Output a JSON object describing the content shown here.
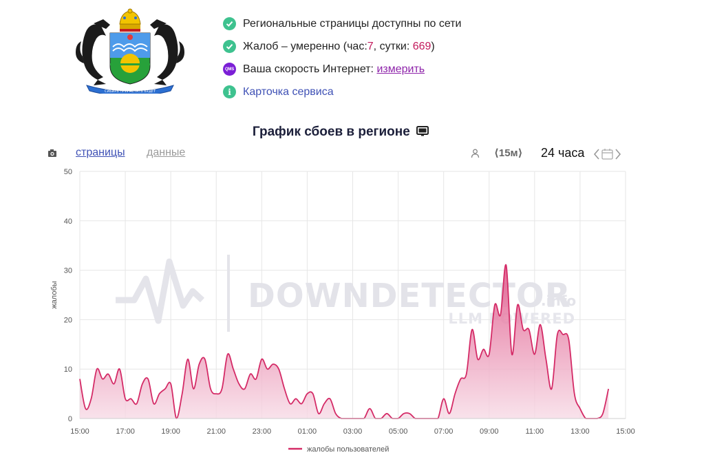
{
  "header": {
    "status": [
      {
        "icon": "check-circle-icon",
        "text": "Региональные страницы доступны по сети"
      },
      {
        "icon": "check-circle-icon",
        "prefix": "Жалоб – умеренно (час: ",
        "hour_count": "7",
        "mid": ", сутки: ",
        "day_count": "669",
        "suffix": ")"
      },
      {
        "icon": "qms-icon",
        "badge": "QMS",
        "text": "Ваша скорость Интернет: ",
        "link": "измерить"
      },
      {
        "icon": "info-icon",
        "badge": "i",
        "link": "Карточка сервиса"
      }
    ],
    "coat_ribbon": "СИБИРЬ ПРИРАСТАТЬ БУДЕТ"
  },
  "chart_title": "График сбоев в регионе",
  "toolbar": {
    "pages_label": "страницы",
    "data_label": "данные",
    "interval_label": "⟨15м⟩",
    "range_label": "24 часа"
  },
  "watermark": {
    "brand": "DOWNDETECTOR",
    "suffix": ".info",
    "tagline": "LLM POWERED"
  },
  "colors": {
    "series": "#d42a66",
    "fill_top": "#e0588a",
    "fill_bottom": "#f7dbe6",
    "grid": "#e6e6e6",
    "accent_red": "#c2185b"
  },
  "chart_data": {
    "type": "area",
    "ylabel": "жалобы",
    "ylim": [
      0,
      50
    ],
    "yticks": [
      0,
      10,
      20,
      30,
      40,
      50
    ],
    "xlim": [
      "15:00",
      "15:00"
    ],
    "xticks": [
      "15:00",
      "17:00",
      "19:00",
      "21:00",
      "23:00",
      "01:00",
      "03:00",
      "05:00",
      "07:00",
      "09:00",
      "11:00",
      "13:00",
      "15:00"
    ],
    "grid": true,
    "legend": "bottom",
    "series": [
      {
        "name": "жалобы пользователей",
        "x": [
          "15:00",
          "15:15",
          "15:30",
          "15:45",
          "16:00",
          "16:15",
          "16:30",
          "16:45",
          "17:00",
          "17:15",
          "17:30",
          "17:45",
          "18:00",
          "18:15",
          "18:30",
          "18:45",
          "19:00",
          "19:15",
          "19:30",
          "19:45",
          "20:00",
          "20:15",
          "20:30",
          "20:45",
          "21:00",
          "21:15",
          "21:30",
          "21:45",
          "22:00",
          "22:15",
          "22:30",
          "22:45",
          "23:00",
          "23:15",
          "23:30",
          "23:45",
          "00:00",
          "00:15",
          "00:30",
          "00:45",
          "01:00",
          "01:15",
          "01:30",
          "01:45",
          "02:00",
          "02:15",
          "02:30",
          "02:45",
          "03:00",
          "03:15",
          "03:30",
          "03:45",
          "04:00",
          "04:15",
          "04:30",
          "04:45",
          "05:00",
          "05:15",
          "05:30",
          "05:45",
          "06:00",
          "06:15",
          "06:30",
          "06:45",
          "07:00",
          "07:15",
          "07:30",
          "07:45",
          "08:00",
          "08:15",
          "08:30",
          "08:45",
          "09:00",
          "09:15",
          "09:30",
          "09:45",
          "10:00",
          "10:15",
          "10:30",
          "10:45",
          "11:00",
          "11:15",
          "11:30",
          "11:45",
          "12:00",
          "12:15",
          "12:30",
          "12:45",
          "13:00",
          "13:15",
          "13:30",
          "13:45",
          "14:00",
          "14:15"
        ],
        "values": [
          8,
          2,
          4,
          10,
          8,
          9,
          7,
          10,
          4,
          4,
          3,
          7,
          8,
          3,
          5,
          6,
          7,
          0,
          5,
          12,
          6,
          11,
          12,
          6,
          5,
          6,
          13,
          10,
          7,
          6,
          9,
          8,
          12,
          10,
          11,
          10,
          6,
          3,
          4,
          3,
          5,
          5,
          1,
          3,
          4,
          1,
          0,
          0,
          0,
          0,
          0,
          2,
          0,
          0,
          1,
          0,
          0,
          1,
          1,
          0,
          0,
          0,
          0,
          0,
          4,
          1,
          5,
          8,
          9,
          18,
          12,
          14,
          13,
          23,
          21,
          31,
          13,
          23,
          18,
          18,
          13,
          19,
          12,
          6,
          17,
          17,
          16,
          5,
          2,
          0,
          0,
          0,
          1,
          6
        ]
      }
    ]
  }
}
